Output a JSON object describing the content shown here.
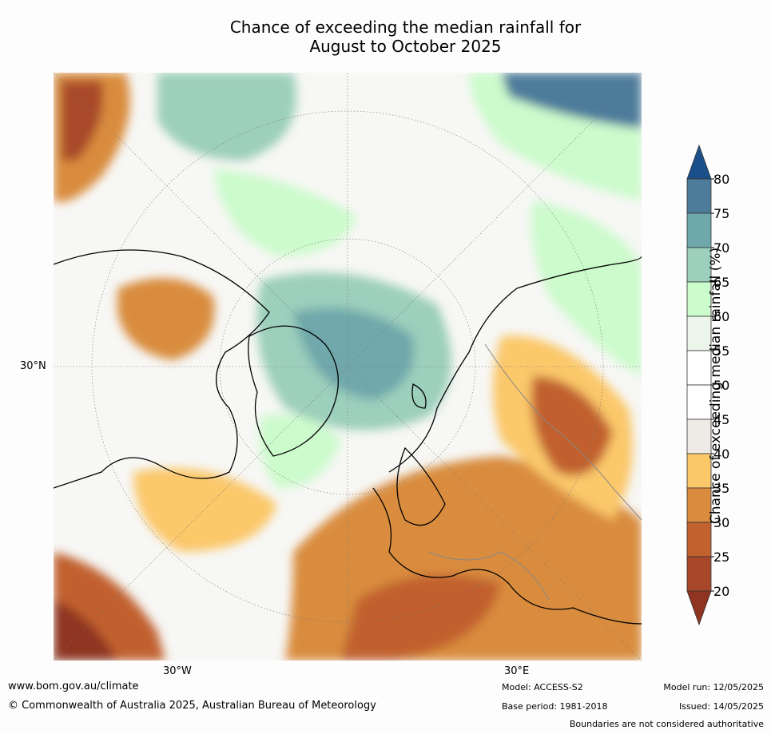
{
  "title_line1": "Chance of exceeding the median rainfall for",
  "title_line2": "August to October 2025",
  "axis_labels": {
    "lat": "30°N",
    "lon_west": "30°W",
    "lon_east": "30°E"
  },
  "colorbar": {
    "label": "Chance of exceeding median rainfall (%)",
    "ticks": [
      "80",
      "75",
      "70",
      "65",
      "60",
      "55",
      "50",
      "45",
      "40",
      "35",
      "30",
      "25",
      "20"
    ],
    "colors": [
      "#1a4f8a",
      "#4d7c9b",
      "#6fa8ab",
      "#9ccfbc",
      "#ccfbcc",
      "#ecf5ea",
      "#ffffff",
      "#ffffff",
      "#eeebe6",
      "#fbc86a",
      "#d98c3d",
      "#c1612e",
      "#a8482a",
      "#8f3420"
    ]
  },
  "footer": {
    "website": "www.bom.gov.au/climate",
    "copyright": "© Commonwealth of Australia 2025, Australian Bureau of Meteorology",
    "model": "Model: ACCESS-S2",
    "base_period": "Base period: 1981-2018",
    "model_run": "Model run: 12/05/2025",
    "issued": "Issued: 14/05/2025",
    "boundaries": "Boundaries are not considered authoritative"
  }
}
